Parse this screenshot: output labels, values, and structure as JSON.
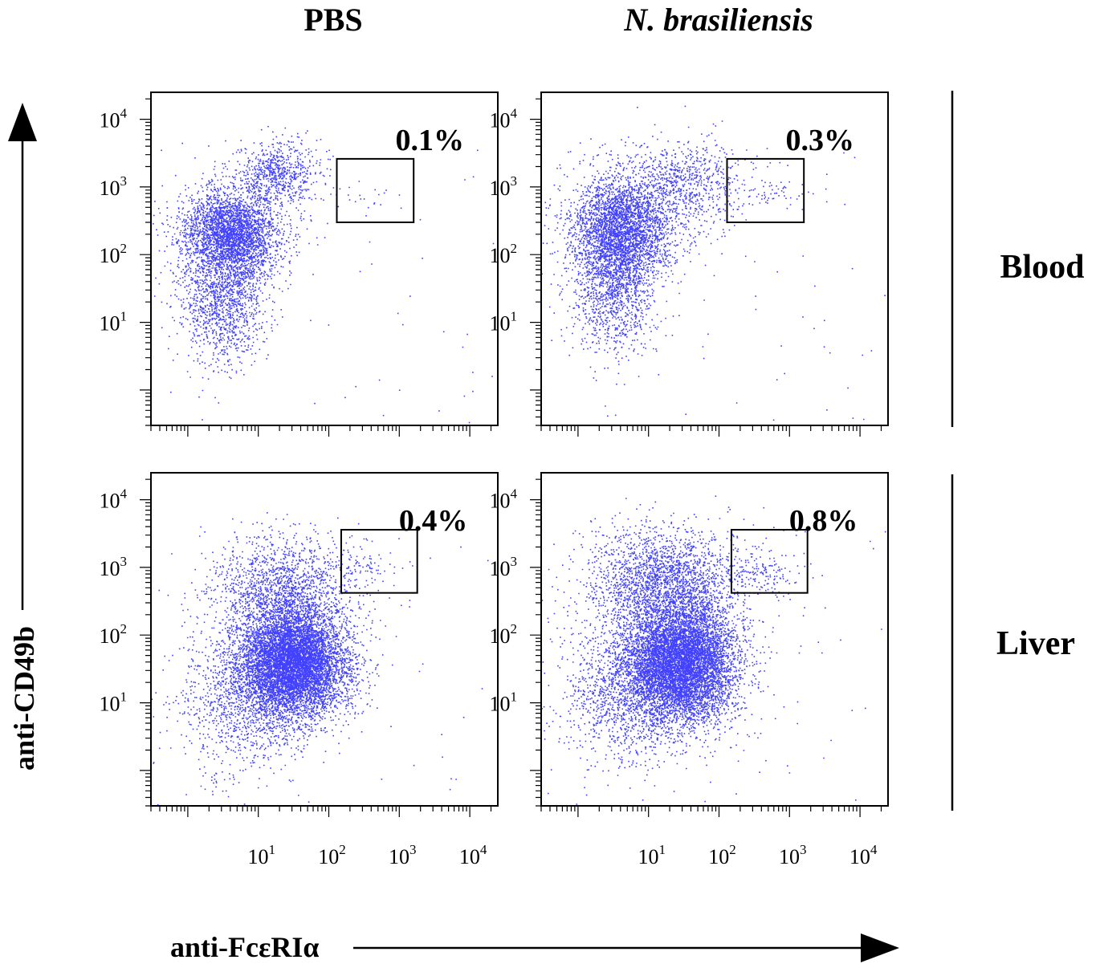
{
  "chart_data": {
    "type": "scatter",
    "columns": [
      {
        "label": "PBS",
        "italic": false
      },
      {
        "label": "N. brasiliensis",
        "italic": true
      }
    ],
    "rows": [
      {
        "label": "Blood"
      },
      {
        "label": "Liver"
      }
    ],
    "xlabel": "anti-FcεRIα",
    "ylabel": "anti-CD49b",
    "axis_scale": "log10",
    "axis_range": [
      0.3,
      25000
    ],
    "tick_decades": [
      1,
      2,
      3,
      4
    ],
    "tick_labels": [
      {
        "base": "10",
        "exp": "1"
      },
      {
        "base": "10",
        "exp": "2"
      },
      {
        "base": "10",
        "exp": "3"
      },
      {
        "base": "10",
        "exp": "4"
      }
    ],
    "point_color": "#2020ff",
    "panels": [
      {
        "name": "blood-pbs",
        "row": 0,
        "col": 0,
        "gate_percent": "0.1%",
        "gate": {
          "x": [
            130,
            1600
          ],
          "y": [
            300,
            2600
          ]
        },
        "populations": [
          {
            "n": 3200,
            "cx": 0.6,
            "cy": 2.3,
            "sx": 0.35,
            "sy": 0.35
          },
          {
            "n": 1200,
            "cx": 0.5,
            "cy": 1.3,
            "sx": 0.3,
            "sy": 0.45
          },
          {
            "n": 700,
            "cx": 1.3,
            "cy": 3.2,
            "sx": 0.3,
            "sy": 0.25
          },
          {
            "n": 22,
            "cx": 2.6,
            "cy": 2.85,
            "sx": 0.25,
            "sy": 0.1
          }
        ],
        "background_n": 50
      },
      {
        "name": "blood-nb",
        "row": 0,
        "col": 1,
        "gate_percent": "0.3%",
        "gate": {
          "x": [
            130,
            1600
          ],
          "y": [
            300,
            2600
          ]
        },
        "populations": [
          {
            "n": 3200,
            "cx": 0.6,
            "cy": 2.35,
            "sx": 0.35,
            "sy": 0.4
          },
          {
            "n": 1000,
            "cx": 0.5,
            "cy": 1.4,
            "sx": 0.3,
            "sy": 0.45
          },
          {
            "n": 900,
            "cx": 1.4,
            "cy": 3.0,
            "sx": 0.45,
            "sy": 0.35
          },
          {
            "n": 55,
            "cx": 2.7,
            "cy": 2.9,
            "sx": 0.25,
            "sy": 0.1
          }
        ],
        "background_n": 80
      },
      {
        "name": "liver-pbs",
        "row": 1,
        "col": 0,
        "gate_percent": "0.4%",
        "gate": {
          "x": [
            150,
            1800
          ],
          "y": [
            420,
            3600
          ]
        },
        "populations": [
          {
            "n": 7500,
            "cx": 1.5,
            "cy": 1.6,
            "sx": 0.38,
            "sy": 0.42
          },
          {
            "n": 1500,
            "cx": 1.3,
            "cy": 2.7,
            "sx": 0.5,
            "sy": 0.4
          },
          {
            "n": 1200,
            "cx": 0.8,
            "cy": 1.1,
            "sx": 0.45,
            "sy": 0.55
          },
          {
            "n": 70,
            "cx": 2.5,
            "cy": 3.0,
            "sx": 0.25,
            "sy": 0.15
          }
        ],
        "background_n": 60
      },
      {
        "name": "liver-nb",
        "row": 1,
        "col": 1,
        "gate_percent": "0.8%",
        "gate": {
          "x": [
            150,
            1800
          ],
          "y": [
            420,
            3600
          ]
        },
        "populations": [
          {
            "n": 7500,
            "cx": 1.45,
            "cy": 1.6,
            "sx": 0.4,
            "sy": 0.45
          },
          {
            "n": 2200,
            "cx": 1.2,
            "cy": 2.8,
            "sx": 0.55,
            "sy": 0.4
          },
          {
            "n": 1300,
            "cx": 0.7,
            "cy": 1.2,
            "sx": 0.45,
            "sy": 0.55
          },
          {
            "n": 140,
            "cx": 2.6,
            "cy": 2.95,
            "sx": 0.28,
            "sy": 0.15
          }
        ],
        "background_n": 80
      }
    ]
  }
}
